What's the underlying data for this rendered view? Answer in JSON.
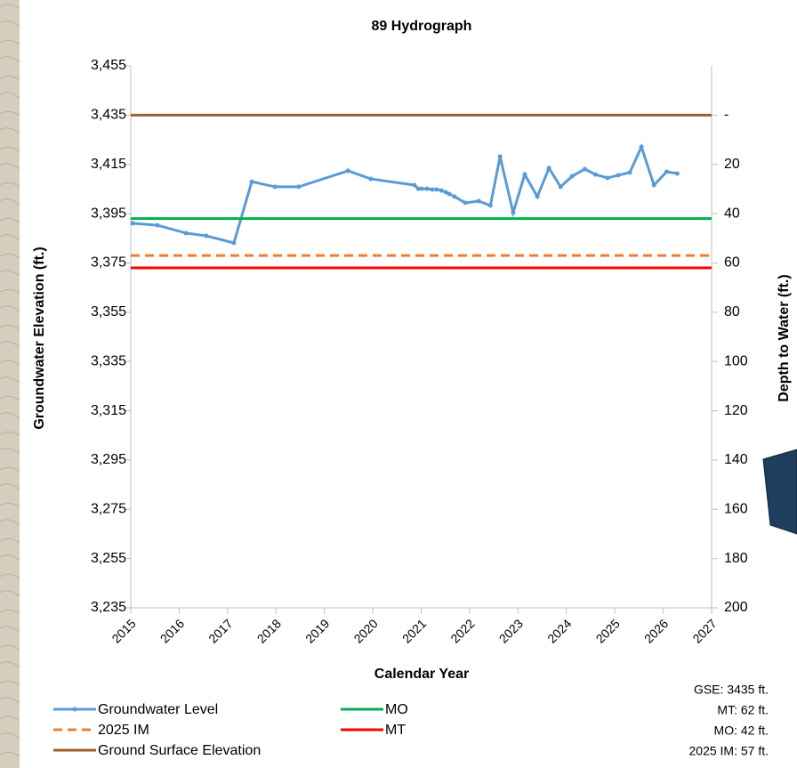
{
  "chart_data": {
    "type": "line",
    "title": "89 Hydrograph",
    "x_label": "Calendar Year",
    "y_label": "Groundwater Elevation (ft.)",
    "y2_label": "Depth to Water (ft.)",
    "xlim": [
      2015,
      2027
    ],
    "xticks": [
      2015,
      2016,
      2017,
      2018,
      2019,
      2020,
      2021,
      2022,
      2023,
      2024,
      2025,
      2026,
      2027
    ],
    "ylim": [
      3235,
      3455
    ],
    "yticks": [
      {
        "value": 3235,
        "label": "3,235"
      },
      {
        "value": 3255,
        "label": "3,255"
      },
      {
        "value": 3275,
        "label": "3,275"
      },
      {
        "value": 3295,
        "label": "3,295"
      },
      {
        "value": 3315,
        "label": "3,315"
      },
      {
        "value": 3335,
        "label": "3,335"
      },
      {
        "value": 3355,
        "label": "3,355"
      },
      {
        "value": 3375,
        "label": "3,375"
      },
      {
        "value": 3395,
        "label": "3,395"
      },
      {
        "value": 3415,
        "label": "3,415"
      },
      {
        "value": 3435,
        "label": "3,435"
      },
      {
        "value": 3455,
        "label": "3,455"
      }
    ],
    "y2lim": [
      200,
      -20
    ],
    "y2ticks": [
      {
        "value": 0,
        "label": "-"
      },
      20,
      40,
      60,
      80,
      100,
      120,
      140,
      160,
      180,
      200
    ],
    "grid": false,
    "series": [
      {
        "name": "Groundwater Level",
        "color": "#5b9bd5",
        "markers": true,
        "x": [
          2015.04,
          2015.55,
          2016.14,
          2016.56,
          2017.13,
          2017.5,
          2017.98,
          2018.47,
          2019.49,
          2019.96,
          2020.86,
          2020.94,
          2021.01,
          2021.12,
          2021.23,
          2021.32,
          2021.42,
          2021.51,
          2021.58,
          2021.69,
          2021.91,
          2022.19,
          2022.43,
          2022.63,
          2022.9,
          2023.14,
          2023.4,
          2023.64,
          2023.88,
          2024.12,
          2024.38,
          2024.6,
          2024.85,
          2025.07,
          2025.31,
          2025.55,
          2025.81,
          2026.07,
          2026.29
        ],
        "values": [
          3391.1,
          3390.3,
          3387.1,
          3386.0,
          3383.1,
          3408.0,
          3405.9,
          3405.9,
          3412.4,
          3409.1,
          3406.6,
          3405.1,
          3405.1,
          3405.1,
          3404.8,
          3404.8,
          3404.4,
          3403.7,
          3403.0,
          3401.9,
          3399.4,
          3400.1,
          3398.3,
          3418.2,
          3395.4,
          3410.9,
          3401.9,
          3413.5,
          3405.9,
          3410.2,
          3413.1,
          3410.9,
          3409.5,
          3410.6,
          3411.7,
          3422.1,
          3406.6,
          3412.0,
          3411.3
        ]
      },
      {
        "name": "MO",
        "color": "#00b050",
        "x": [
          2015,
          2027
        ],
        "values": [
          3393,
          3393
        ]
      },
      {
        "name": "2025 IM",
        "color": "#ed7d31",
        "dashed": true,
        "x": [
          2015,
          2027
        ],
        "values": [
          3378,
          3378
        ]
      },
      {
        "name": "MT",
        "color": "#ff0000",
        "x": [
          2015,
          2027
        ],
        "values": [
          3373,
          3373
        ]
      },
      {
        "name": "Ground Surface Elevation",
        "color": "#9e6128",
        "x": [
          2015,
          2027
        ],
        "values": [
          3435,
          3435
        ]
      }
    ],
    "annotations": [
      "GSE: 3435 ft.",
      "MT: 62 ft.",
      "MO: 42 ft.",
      "2025 IM: 57 ft."
    ]
  }
}
